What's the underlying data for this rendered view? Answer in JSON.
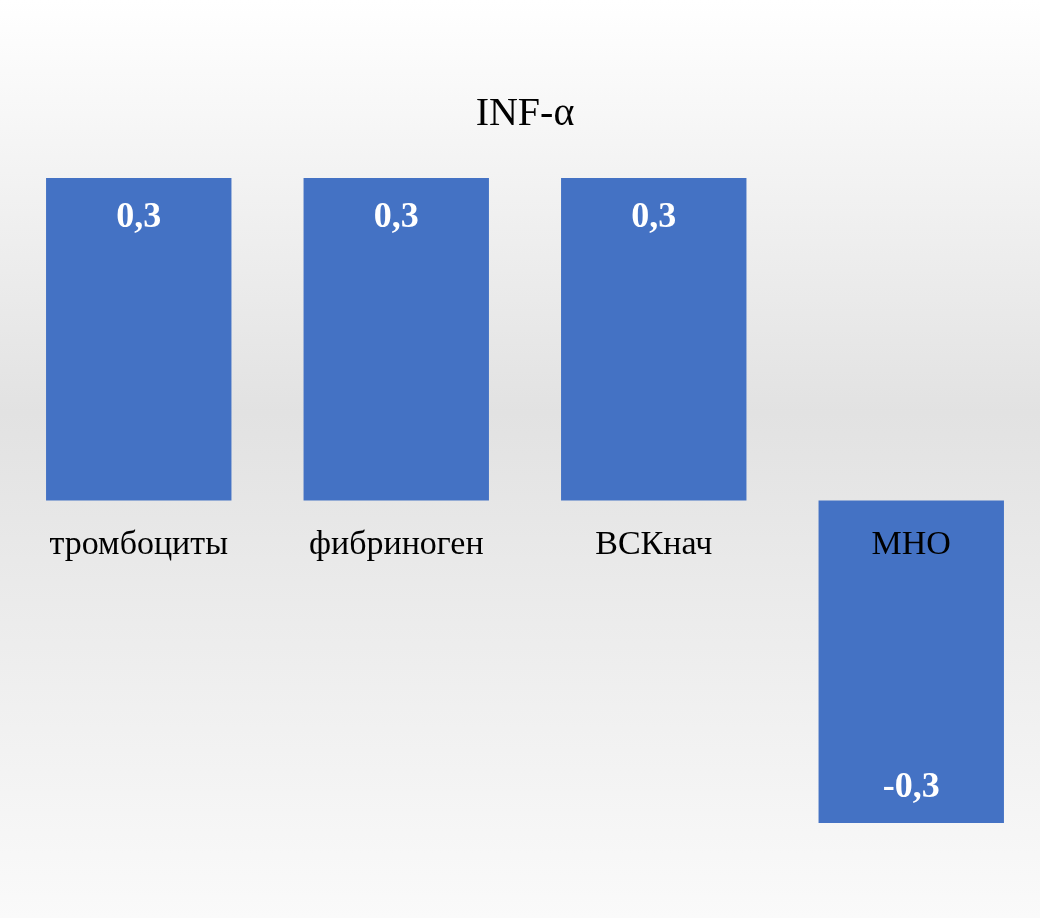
{
  "chart_data": {
    "type": "bar",
    "title": "INF-α",
    "categories": [
      "тромбоциты",
      "фибриноген",
      "ВСКнач",
      "МНО"
    ],
    "values": [
      0.3,
      0.3,
      0.3,
      -0.3
    ],
    "value_labels": [
      "0,3",
      "0,3",
      "0,3",
      "-0,3"
    ],
    "color": "#4472c4",
    "grid": false,
    "legend": false
  }
}
